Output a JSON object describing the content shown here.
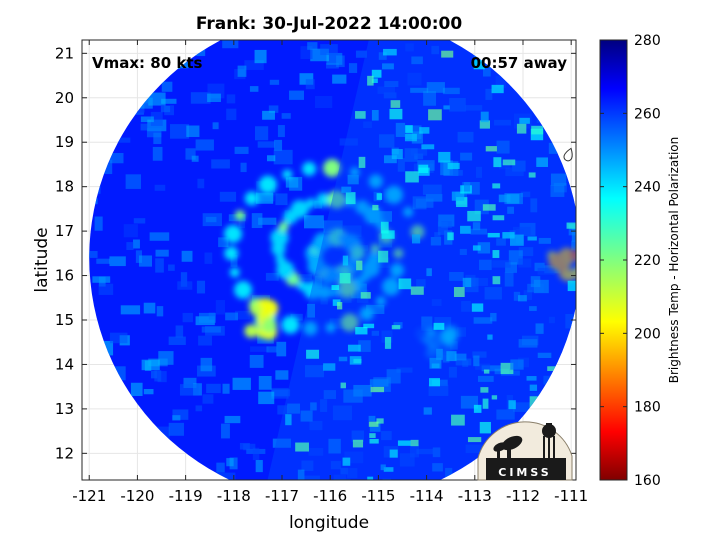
{
  "chart_data": {
    "type": "heatmap",
    "title": "Frank: 30-Jul-2022 14:00:00",
    "xlabel": "longitude",
    "ylabel": "latitude",
    "xlim": [
      -121.15,
      -110.9
    ],
    "ylim": [
      11.4,
      21.3
    ],
    "x_ticks": [
      -121,
      -120,
      -119,
      -118,
      -117,
      -116,
      -115,
      -114,
      -113,
      -112,
      -111
    ],
    "y_ticks": [
      12,
      13,
      14,
      15,
      16,
      17,
      18,
      19,
      20,
      21
    ],
    "grid": true,
    "annotations": {
      "left": "Vmax: 80 kts",
      "right": "00:57 away"
    },
    "storm_center": {
      "lon": -115.9,
      "lat": 16.4
    },
    "swath_radius_deg": 5.1,
    "swath_seam_lon_top": -115.2,
    "swath_seam_lon_bottom": -117.3,
    "colorbar": {
      "label": "Brightness Temp - Horizontal Polarization",
      "min": 160,
      "max": 280,
      "ticks": [
        160,
        180,
        200,
        220,
        240,
        260,
        280
      ],
      "colormap": "jet"
    },
    "features": [
      {
        "name": "eyewall-ring",
        "lon": -115.9,
        "lat": 16.4,
        "radius": 0.45,
        "value": 245
      },
      {
        "name": "inner-band",
        "lon": -116.0,
        "lat": 16.6,
        "radius": 1.1,
        "value": 240
      },
      {
        "name": "outer-band",
        "lon": -116.2,
        "lat": 16.5,
        "radius": 1.9,
        "value": 238
      },
      {
        "name": "south-band",
        "lon": -117.4,
        "lat": 15.0,
        "value": 200
      },
      {
        "name": "east-edge-convection",
        "lon": -111.1,
        "lat": 16.2,
        "value": 180
      },
      {
        "name": "southeast-rainband",
        "lon": -113.8,
        "lat": 14.5,
        "value": 235
      }
    ],
    "background_value": 262
  },
  "logo": {
    "text": "CIMSS"
  },
  "watermark_icon": "drop-icon"
}
